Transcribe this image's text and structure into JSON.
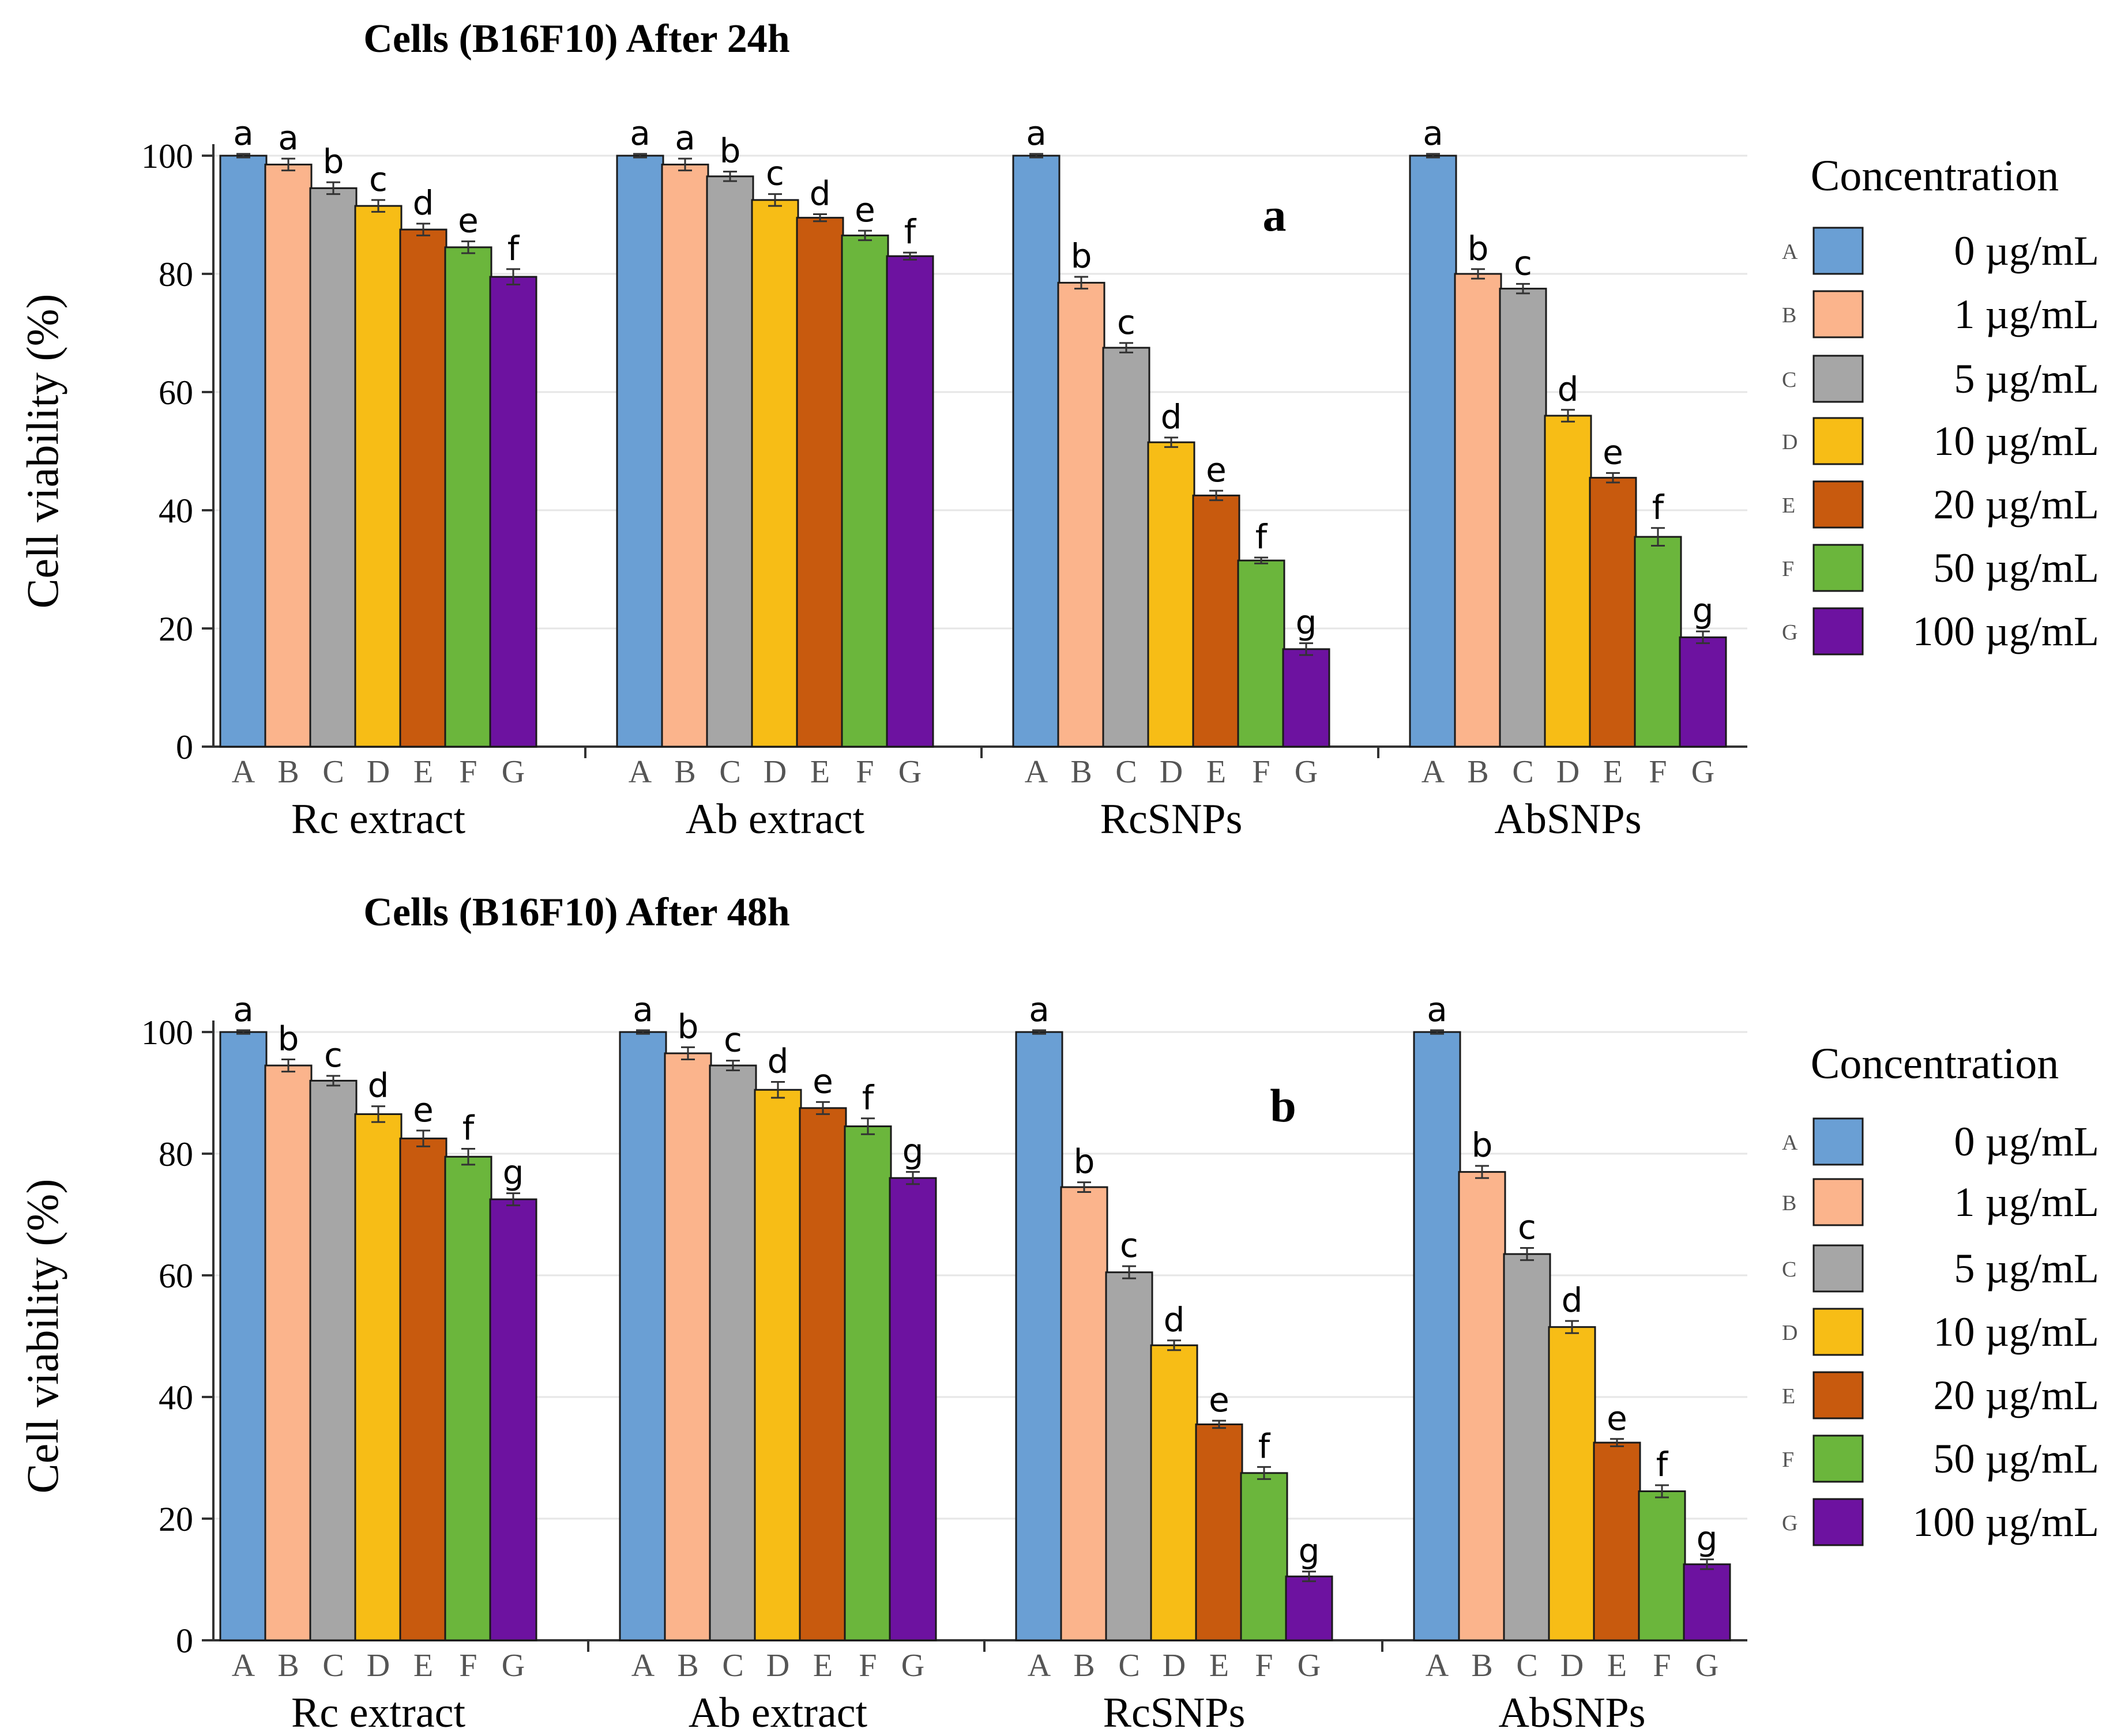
{
  "chart_data": [
    {
      "type": "bar",
      "panel_label": "a",
      "title": "Cells (B16F10) After 24h",
      "ylabel": "Cell viability (%)",
      "xlabel": "",
      "ylim": [
        0,
        100
      ],
      "yticks": [
        0,
        20,
        40,
        60,
        80,
        100
      ],
      "grid": true,
      "categories": [
        "A",
        "B",
        "C",
        "D",
        "E",
        "F",
        "G"
      ],
      "groups": [
        {
          "name": "Rc extract",
          "values": [
            100,
            98.5,
            94.5,
            91.5,
            87.5,
            84.5,
            79.5
          ],
          "errors": [
            0.3,
            1.0,
            1.0,
            1.0,
            1.0,
            1.0,
            1.3
          ],
          "letters": [
            "a",
            "a",
            "b",
            "c",
            "d",
            "e",
            "f"
          ]
        },
        {
          "name": "Ab extract",
          "values": [
            100,
            98.5,
            96.5,
            92.5,
            89.5,
            86.5,
            83
          ],
          "errors": [
            0.3,
            1.0,
            0.8,
            1.0,
            0.6,
            0.8,
            0.6
          ],
          "letters": [
            "a",
            "a",
            "b",
            "c",
            "d",
            "e",
            "f"
          ]
        },
        {
          "name": "RcSNPs",
          "values": [
            100,
            78.5,
            67.5,
            51.5,
            42.5,
            31.5,
            16.5
          ],
          "errors": [
            0.3,
            1.0,
            0.8,
            0.8,
            0.8,
            0.5,
            1.0
          ],
          "letters": [
            "a",
            "b",
            "c",
            "d",
            "e",
            "f",
            "g"
          ]
        },
        {
          "name": "AbSNPs",
          "values": [
            100,
            80,
            77.5,
            56,
            45.5,
            35.5,
            18.5
          ],
          "errors": [
            0.3,
            0.8,
            0.8,
            1.0,
            0.8,
            1.5,
            1.0
          ],
          "letters": [
            "a",
            "b",
            "c",
            "d",
            "e",
            "f",
            "g"
          ]
        }
      ],
      "legend": {
        "title": "Concentration",
        "position": "right",
        "entries": [
          {
            "letter": "A",
            "label": "0 µg/mL"
          },
          {
            "letter": "B",
            "label": "1 µg/mL"
          },
          {
            "letter": "C",
            "label": "5 µg/mL"
          },
          {
            "letter": "D",
            "label": "10 µg/mL"
          },
          {
            "letter": "E",
            "label": "20 µg/mL"
          },
          {
            "letter": "F",
            "label": "50 µg/mL"
          },
          {
            "letter": "G",
            "label": "100 µg/mL"
          }
        ]
      }
    },
    {
      "type": "bar",
      "panel_label": "b",
      "title": "Cells (B16F10) After 48h",
      "ylabel": "Cell viability (%)",
      "xlabel": "",
      "ylim": [
        0,
        100
      ],
      "yticks": [
        0,
        20,
        40,
        60,
        80,
        100
      ],
      "grid": true,
      "categories": [
        "A",
        "B",
        "C",
        "D",
        "E",
        "F",
        "G"
      ],
      "groups": [
        {
          "name": "Rc extract",
          "values": [
            100,
            94.5,
            92,
            86.5,
            82.5,
            79.5,
            72.5
          ],
          "errors": [
            0.3,
            1.0,
            0.8,
            1.3,
            1.3,
            1.3,
            1.0
          ],
          "letters": [
            "a",
            "b",
            "c",
            "d",
            "e",
            "f",
            "g"
          ]
        },
        {
          "name": "Ab extract",
          "values": [
            100,
            96.5,
            94.5,
            90.5,
            87.5,
            84.5,
            76
          ],
          "errors": [
            0.3,
            1.0,
            0.8,
            1.3,
            1.0,
            1.3,
            1.0
          ],
          "letters": [
            "a",
            "b",
            "c",
            "d",
            "e",
            "f",
            "g"
          ]
        },
        {
          "name": "RcSNPs",
          "values": [
            100,
            74.5,
            60.5,
            48.5,
            35.5,
            27.5,
            10.5
          ],
          "errors": [
            0.3,
            0.8,
            1.0,
            0.8,
            0.6,
            1.0,
            0.8
          ],
          "letters": [
            "a",
            "b",
            "c",
            "d",
            "e",
            "f",
            "g"
          ]
        },
        {
          "name": "AbSNPs",
          "values": [
            100,
            77,
            63.5,
            51.5,
            32.5,
            24.5,
            12.5
          ],
          "errors": [
            0.3,
            1.0,
            1.0,
            1.0,
            0.6,
            1.0,
            0.8
          ],
          "letters": [
            "a",
            "b",
            "c",
            "d",
            "e",
            "f",
            "g"
          ]
        }
      ],
      "legend": {
        "title": "Concentration",
        "position": "right",
        "entries": [
          {
            "letter": "A",
            "label": "0 µg/mL"
          },
          {
            "letter": "B",
            "label": "1 µg/mL"
          },
          {
            "letter": "C",
            "label": "5 µg/mL"
          },
          {
            "letter": "D",
            "label": "10 µg/mL"
          },
          {
            "letter": "E",
            "label": "20 µg/mL"
          },
          {
            "letter": "F",
            "label": "50 µg/mL"
          },
          {
            "letter": "G",
            "label": "100 µg/mL"
          }
        ]
      }
    }
  ],
  "colors": {
    "series": [
      "#6a9fd4",
      "#fbb48c",
      "#a6a6a6",
      "#f7bd16",
      "#c85a0e",
      "#6bb63c",
      "#6d12a0"
    ],
    "bar_outline": "#1a1a1a",
    "grid": "#e6e6e6",
    "axis": "#333333"
  }
}
